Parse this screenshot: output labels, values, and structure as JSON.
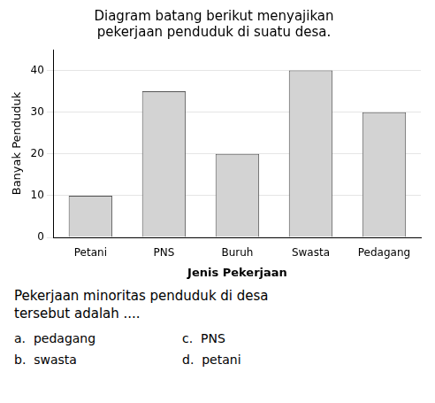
{
  "chart_data": {
    "type": "bar",
    "title": [
      "Diagram batang berikut menyajikan",
      "pekerjaan penduduk di suatu desa."
    ],
    "categories": [
      "Petani",
      "PNS",
      "Buruh",
      "Swasta",
      "Pedagang"
    ],
    "values": [
      10,
      35,
      20,
      40,
      30
    ],
    "color": "#d3d3d3",
    "xlabel": "Jenis Pekerjaan",
    "ylabel": "Banyak Penduduk",
    "ylim": [
      0,
      45
    ],
    "yticks": [
      0,
      10,
      20,
      30,
      40
    ],
    "grid": true,
    "annotations": [
      "Pekerjaan minoritas penduduk di desa",
      "tersebut adalah ....",
      "a.  pedagang",
      "b.  swasta",
      "c.  PNS",
      "d.  petani"
    ]
  }
}
